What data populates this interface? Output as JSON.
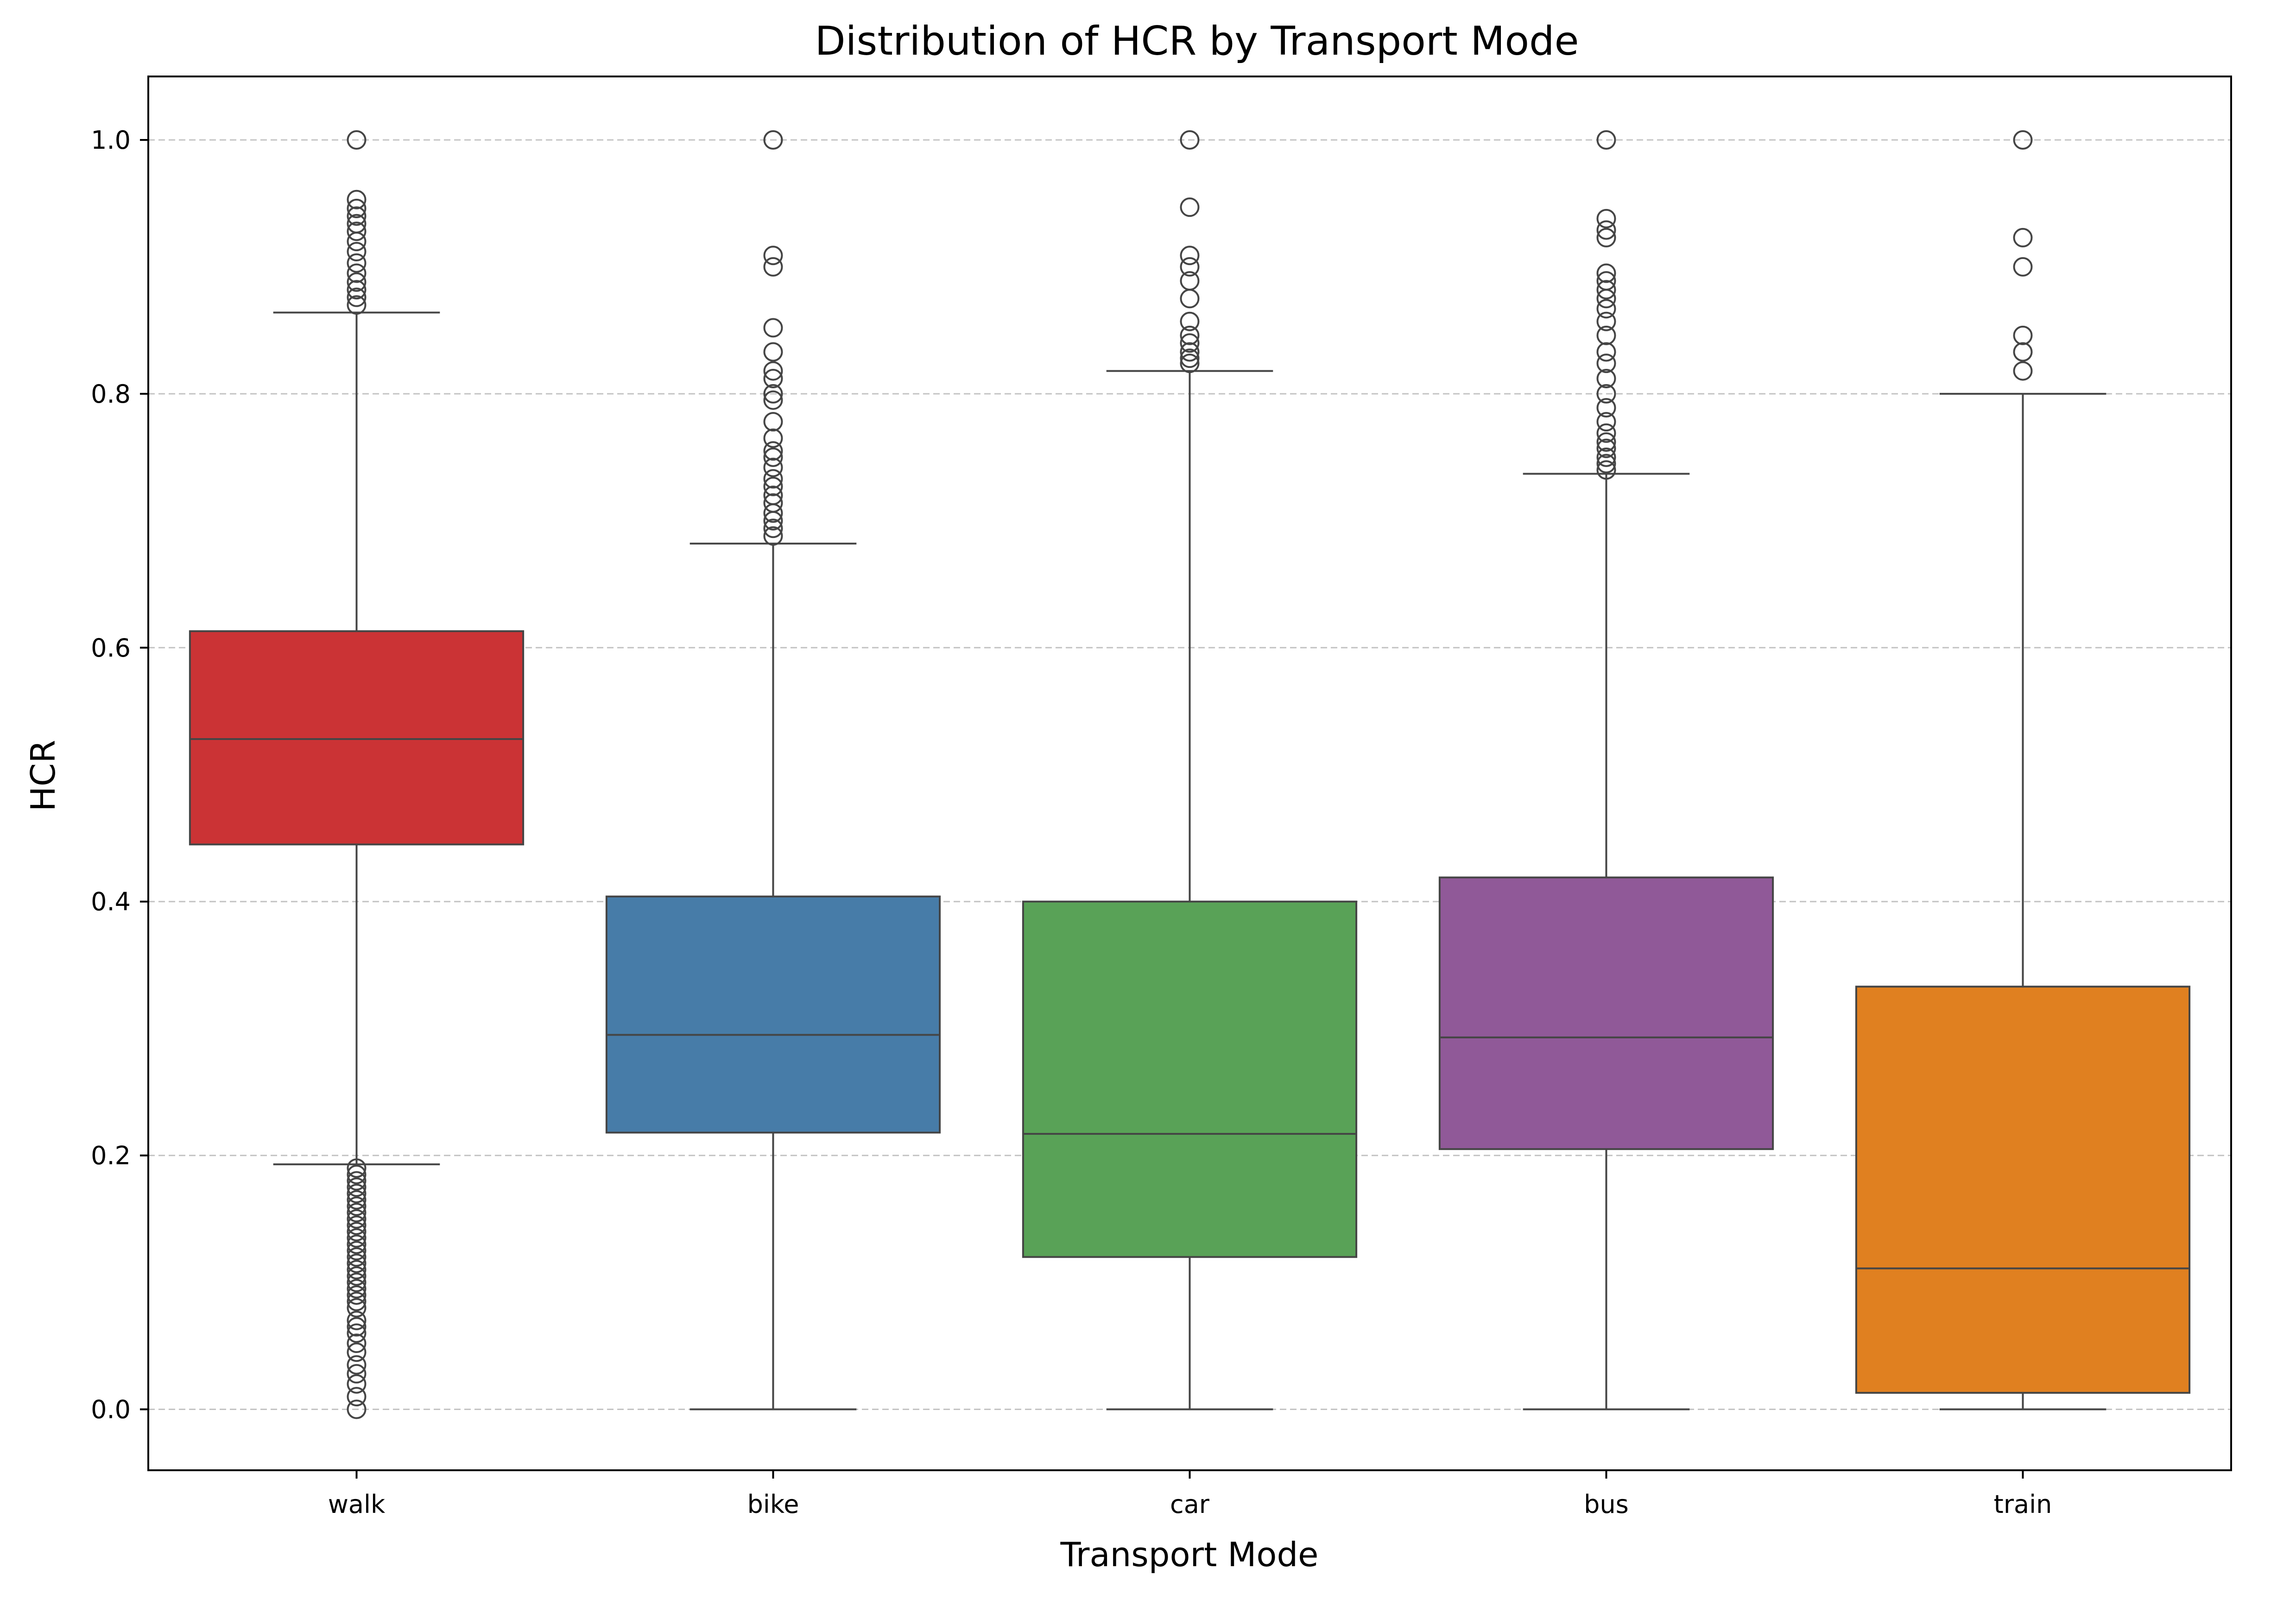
{
  "chart_data": {
    "type": "box",
    "title": "Distribution of HCR by Transport Mode",
    "xlabel": "Transport Mode",
    "ylabel": "HCR",
    "ylim": [
      -0.048,
      1.05
    ],
    "yticks": [
      "0.0",
      "0.2",
      "0.4",
      "0.6",
      "0.8",
      "1.0"
    ],
    "grid": "horizontal-dashed",
    "categories": [
      "walk",
      "bike",
      "car",
      "bus",
      "train"
    ],
    "boxes": [
      {
        "category": "walk",
        "color": "#cb3335",
        "whisker_low": 0.193,
        "q1": 0.445,
        "median": 0.528,
        "q3": 0.613,
        "whisker_high": 0.864,
        "outliers": [
          1.0,
          0.953,
          0.946,
          0.94,
          0.934,
          0.928,
          0.92,
          0.912,
          0.903,
          0.895,
          0.888,
          0.882,
          0.876,
          0.87,
          0.19,
          0.185,
          0.18,
          0.175,
          0.17,
          0.165,
          0.16,
          0.155,
          0.15,
          0.145,
          0.14,
          0.135,
          0.13,
          0.125,
          0.12,
          0.115,
          0.11,
          0.105,
          0.1,
          0.095,
          0.09,
          0.085,
          0.08,
          0.07,
          0.065,
          0.06,
          0.052,
          0.045,
          0.035,
          0.028,
          0.02,
          0.01,
          0.0
        ]
      },
      {
        "category": "bike",
        "color": "#477ca8",
        "whisker_low": 0.0,
        "q1": 0.218,
        "median": 0.295,
        "q3": 0.404,
        "whisker_high": 0.682,
        "outliers": [
          1.0,
          0.909,
          0.9,
          0.852,
          0.833,
          0.818,
          0.812,
          0.8,
          0.795,
          0.778,
          0.765,
          0.755,
          0.75,
          0.742,
          0.733,
          0.727,
          0.72,
          0.714,
          0.706,
          0.7,
          0.694,
          0.688
        ]
      },
      {
        "category": "car",
        "color": "#59a257",
        "whisker_low": 0.0,
        "q1": 0.12,
        "median": 0.217,
        "q3": 0.4,
        "whisker_high": 0.818,
        "outliers": [
          1.0,
          0.947,
          0.909,
          0.9,
          0.889,
          0.875,
          0.857,
          0.846,
          0.84,
          0.833,
          0.828,
          0.824
        ]
      },
      {
        "category": "bus",
        "color": "#905998",
        "whisker_low": 0.0,
        "q1": 0.205,
        "median": 0.293,
        "q3": 0.419,
        "whisker_high": 0.737,
        "outliers": [
          1.0,
          0.938,
          0.929,
          0.923,
          0.895,
          0.889,
          0.882,
          0.875,
          0.867,
          0.857,
          0.846,
          0.833,
          0.824,
          0.812,
          0.8,
          0.789,
          0.778,
          0.769,
          0.762,
          0.757,
          0.75,
          0.745,
          0.74
        ]
      },
      {
        "category": "train",
        "color": "#e08020",
        "whisker_low": 0.0,
        "q1": 0.013,
        "median": 0.111,
        "q3": 0.333,
        "whisker_high": 0.8,
        "outliers": [
          1.0,
          0.923,
          0.9,
          0.846,
          0.833,
          0.818
        ]
      }
    ]
  }
}
